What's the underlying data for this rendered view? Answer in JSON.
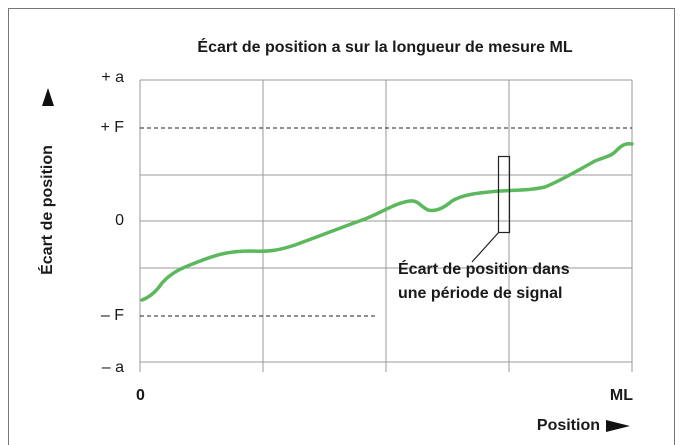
{
  "title": "Écart de position a sur la longueur de mesure ML",
  "y_axis": {
    "label": "Écart de position",
    "ticks": [
      "+ a",
      "+ F",
      "0",
      "– F",
      "– a"
    ]
  },
  "x_axis": {
    "label": "Position",
    "start": "0",
    "end": "ML"
  },
  "annotation": [
    "Écart de position dans",
    "une période de signal"
  ]
}
